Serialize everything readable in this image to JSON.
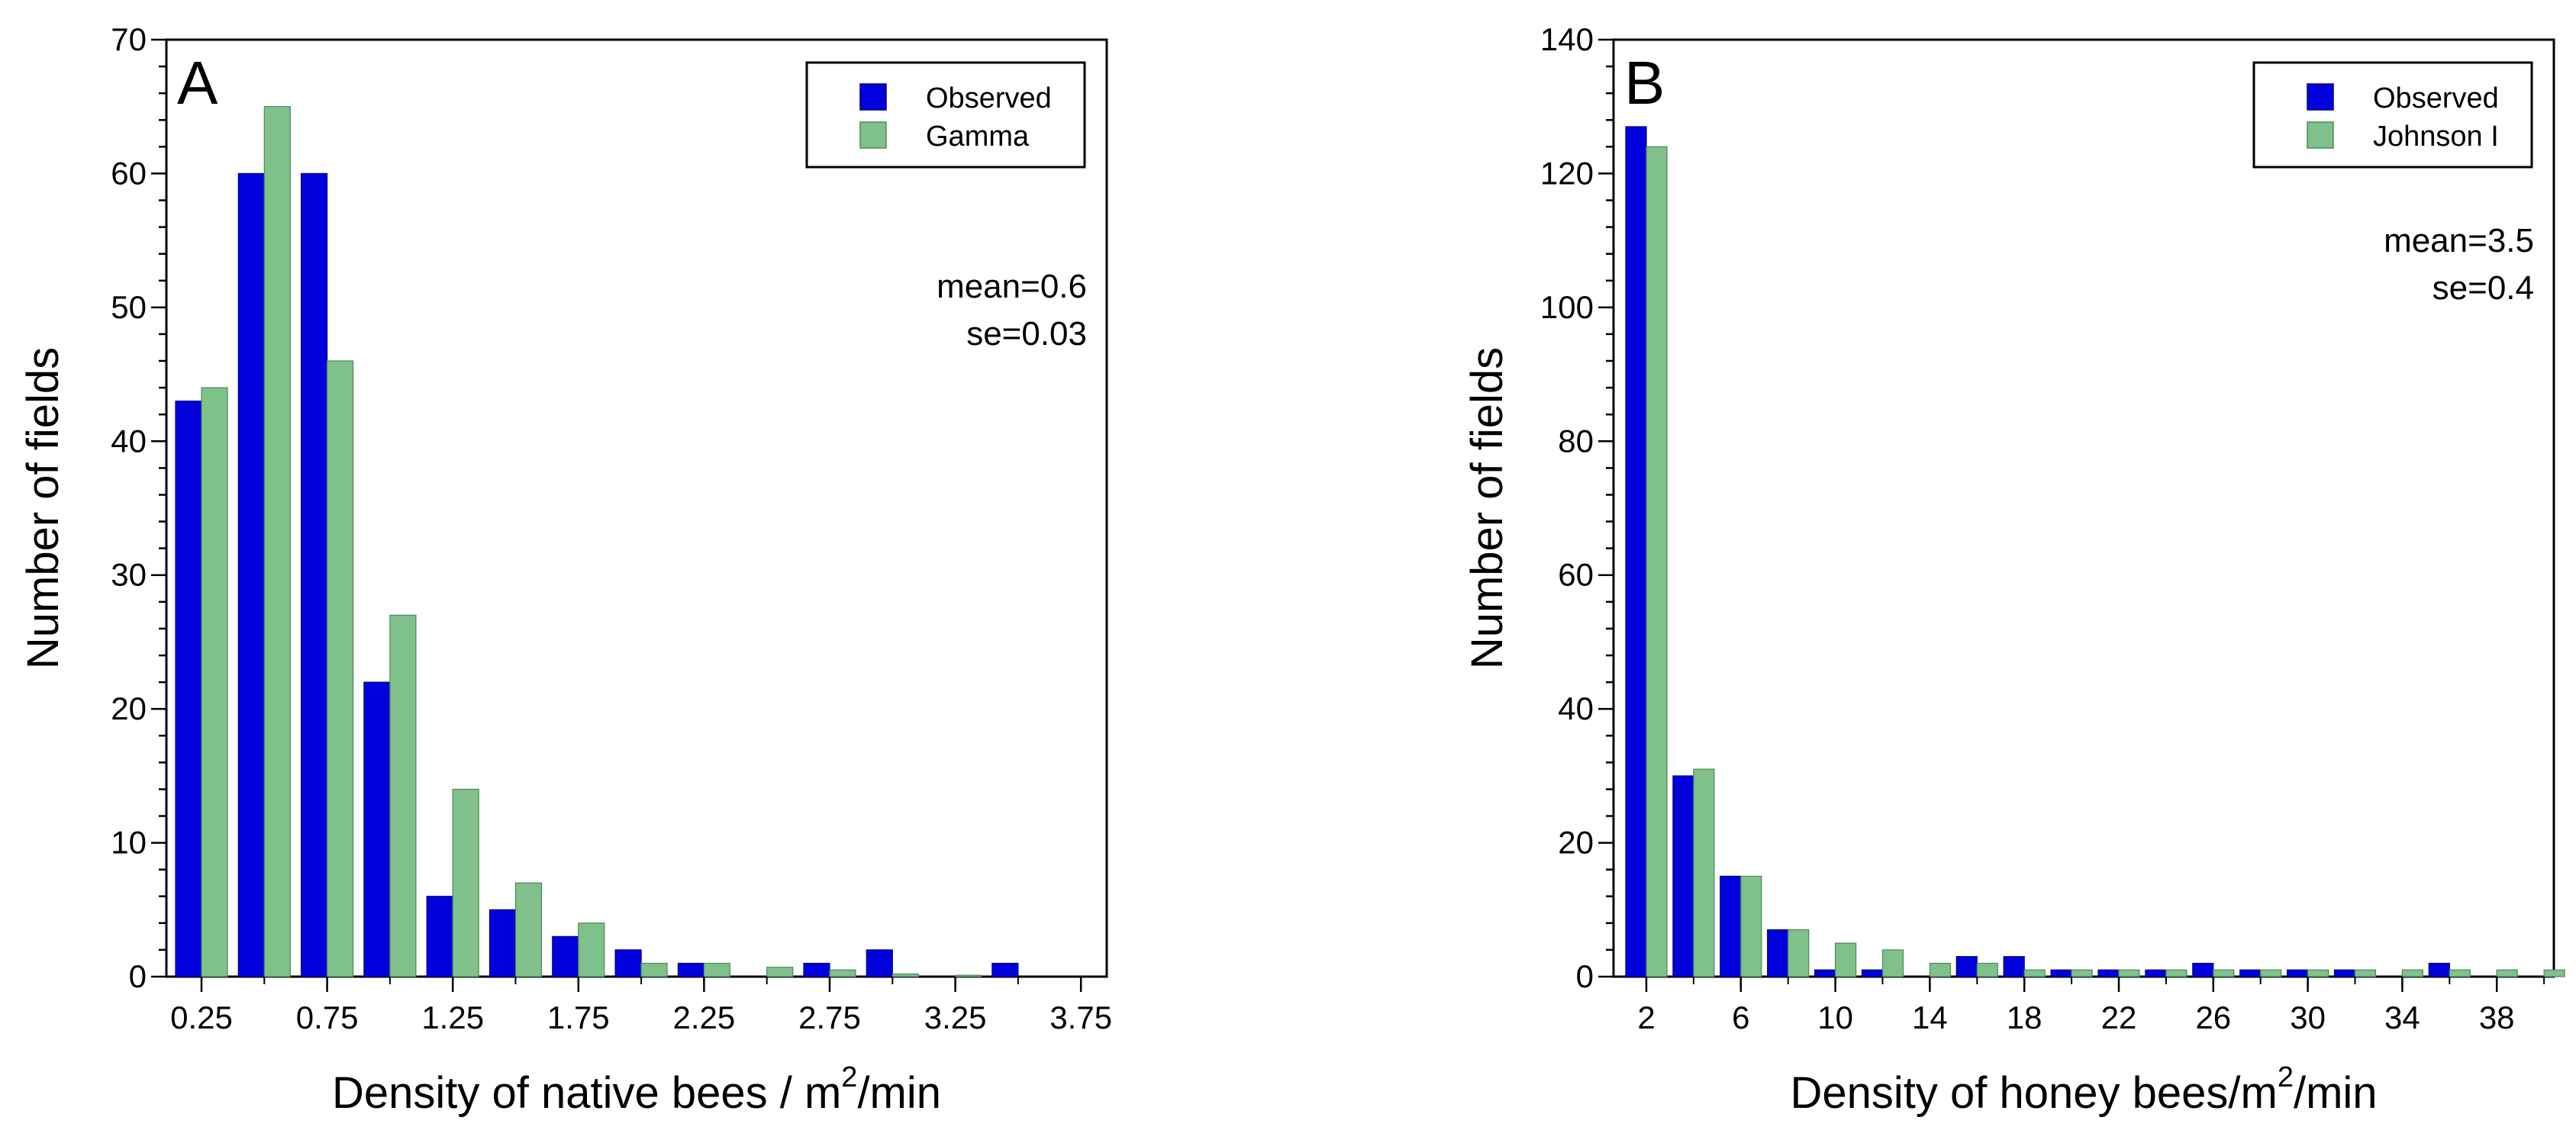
{
  "colors": {
    "observed": "#0000dd",
    "fitted": "#80c08a",
    "stroke_obs": "#000080",
    "stroke_fit": "#4a8a58"
  },
  "chart_data": [
    {
      "type": "bar",
      "panel_label": "A",
      "xlabel": "Density of native bees / m",
      "xlabel_sup": "2",
      "xlabel_tail": "/min",
      "ylabel": "Number of fields",
      "ylim": [
        0,
        70
      ],
      "yticks": [
        "0",
        "10",
        "20",
        "30",
        "40",
        "50",
        "60",
        "70"
      ],
      "categories": [
        "0.25",
        "0.50",
        "0.75",
        "1.00",
        "1.25",
        "1.50",
        "1.75",
        "2.00",
        "2.25",
        "2.50",
        "2.75",
        "3.00",
        "3.25",
        "3.50",
        "3.75"
      ],
      "xtick_labels": [
        "0.25",
        "0.75",
        "1.25",
        "1.75",
        "2.25",
        "2.75",
        "3.25",
        "3.75"
      ],
      "series": [
        {
          "name": "Observed",
          "values": [
            43,
            60,
            60,
            22,
            6,
            5,
            3,
            2,
            1,
            0,
            1,
            2,
            0,
            1,
            0
          ]
        },
        {
          "name": "Gamma",
          "values": [
            44,
            65,
            46,
            27,
            14,
            7,
            4,
            1,
            1,
            0.7,
            0.5,
            0.2,
            0.1,
            0,
            0
          ]
        }
      ],
      "legend": [
        "Observed",
        "Gamma"
      ],
      "legend_position": "top-right",
      "stats": [
        "mean=0.6",
        "se=0.03"
      ]
    },
    {
      "type": "bar",
      "panel_label": "B",
      "xlabel": "Density of honey bees/m",
      "xlabel_sup": "2",
      "xlabel_tail": "/min",
      "ylabel": "Number of fields",
      "ylim": [
        0,
        140
      ],
      "yticks": [
        "0",
        "20",
        "40",
        "60",
        "80",
        "100",
        "120",
        "140"
      ],
      "categories": [
        "2",
        "4",
        "6",
        "8",
        "10",
        "12",
        "14",
        "16",
        "18",
        "20",
        "22",
        "24",
        "26",
        "28",
        "30",
        "32",
        "34",
        "36",
        "38",
        "40"
      ],
      "xtick_labels": [
        "2",
        "6",
        "10",
        "14",
        "18",
        "22",
        "26",
        "30",
        "34",
        "38"
      ],
      "series": [
        {
          "name": "Observed",
          "values": [
            127,
            30,
            15,
            7,
            1,
            1,
            0,
            3,
            3,
            1,
            1,
            1,
            2,
            1,
            1,
            1,
            0,
            2,
            0,
            0
          ]
        },
        {
          "name": "Johnson I",
          "values": [
            124,
            31,
            15,
            7,
            5,
            4,
            2,
            2,
            1,
            1,
            1,
            1,
            1,
            1,
            1,
            1,
            1,
            1,
            1,
            1
          ]
        }
      ],
      "legend": [
        "Observed",
        "Johnson I"
      ],
      "legend_position": "top-right",
      "stats": [
        "mean=3.5",
        "se=0.4"
      ]
    }
  ]
}
